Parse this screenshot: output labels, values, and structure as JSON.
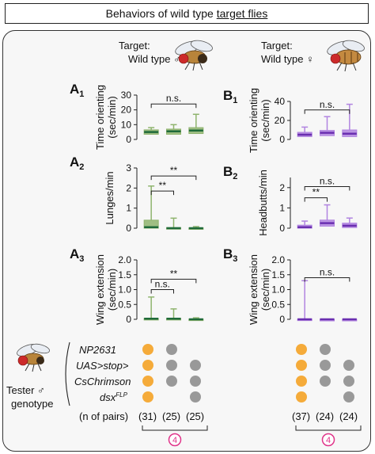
{
  "title": {
    "prefix": "Behaviors of wild type ",
    "underlined": "target flies"
  },
  "columns": [
    {
      "target_label": "Target:",
      "target_sex_label": "Wild type ♂"
    },
    {
      "target_label": "Target:",
      "target_sex_label": "Wild type ♀"
    }
  ],
  "colors": {
    "green_light": "#8fb46e",
    "green_dark": "#1f6a3a",
    "purple_light": "#b184e0",
    "purple_dark": "#6a2fb0",
    "dot_orange": "#f5ab3a",
    "dot_gray": "#999999",
    "badge": "#e0348a"
  },
  "chart_data": [
    {
      "panel": "A1",
      "panel_letter": "A",
      "panel_sub": "1",
      "type": "box",
      "ylabel_line1": "Time orienting",
      "ylabel_line2": "(sec/min)",
      "ylim": [
        0,
        30
      ],
      "yticks": [
        "0",
        "10",
        "20",
        "30"
      ],
      "color_light": "#8fb46e",
      "color_dark": "#1f6a3a",
      "boxes": [
        {
          "min": 1,
          "q1": 3.5,
          "median": 5,
          "q3": 6.5,
          "max": 8
        },
        {
          "min": 1,
          "q1": 3.5,
          "median": 5.5,
          "q3": 7,
          "max": 10
        },
        {
          "min": 1,
          "q1": 4,
          "median": 6,
          "q3": 8,
          "max": 17
        }
      ],
      "annotations": [
        {
          "text": "n.s.",
          "from": 0,
          "to": 2,
          "level": 24
        }
      ]
    },
    {
      "panel": "A2",
      "panel_letter": "A",
      "panel_sub": "2",
      "type": "box",
      "ylabel_line1": "Lunges/min",
      "ylabel_line2": "",
      "ylim": [
        0,
        3
      ],
      "yticks": [
        "0",
        "1",
        "2",
        "3"
      ],
      "color_light": "#8fb46e",
      "color_dark": "#1f6a3a",
      "boxes": [
        {
          "min": 0,
          "q1": 0,
          "median": 0.05,
          "q3": 0.4,
          "max": 2.1
        },
        {
          "min": 0,
          "q1": 0,
          "median": 0,
          "q3": 0.03,
          "max": 0.5
        },
        {
          "min": 0,
          "q1": 0,
          "median": 0,
          "q3": 0.02,
          "max": 0.08
        }
      ],
      "annotations": [
        {
          "text": "**",
          "from": 0,
          "to": 1,
          "level": 1.85
        },
        {
          "text": "**",
          "from": 0,
          "to": 2,
          "level": 2.6
        }
      ]
    },
    {
      "panel": "A3",
      "panel_letter": "A",
      "panel_sub": "3",
      "type": "box",
      "ylabel_line1": "Wing extension",
      "ylabel_line2": "(sec/min)",
      "ylim": [
        0,
        2
      ],
      "yticks": [
        "0",
        "0.5",
        "1.0",
        "1.5",
        "2.0"
      ],
      "color_light": "#8fb46e",
      "color_dark": "#1f6a3a",
      "boxes": [
        {
          "min": 0,
          "q1": 0,
          "median": 0.02,
          "q3": 0.03,
          "max": 0.75
        },
        {
          "min": 0,
          "q1": 0,
          "median": 0.02,
          "q3": 0.03,
          "max": 0.35
        },
        {
          "min": 0,
          "q1": 0,
          "median": 0,
          "q3": 0.01,
          "max": 0.05
        }
      ],
      "annotations": [
        {
          "text": "n.s.",
          "from": 0,
          "to": 1,
          "level": 1.0
        },
        {
          "text": "**",
          "from": 0,
          "to": 2,
          "level": 1.35
        }
      ]
    },
    {
      "panel": "B1",
      "panel_letter": "B",
      "panel_sub": "1",
      "type": "box",
      "ylabel_line1": "Time orienting",
      "ylabel_line2": "(sec/min)",
      "ylim": [
        0,
        40
      ],
      "yticks": [
        "0",
        "20",
        "40"
      ],
      "color_light": "#b184e0",
      "color_dark": "#6a2fb0",
      "boxes": [
        {
          "min": 0.5,
          "q1": 3,
          "median": 5,
          "q3": 7.5,
          "max": 13
        },
        {
          "min": 0.5,
          "q1": 4,
          "median": 7,
          "q3": 9.5,
          "max": 24
        },
        {
          "min": 0.5,
          "q1": 3,
          "median": 6,
          "q3": 10,
          "max": 37
        }
      ],
      "annotations": [
        {
          "text": "n.s.",
          "from": 0,
          "to": 2,
          "level": 31
        }
      ]
    },
    {
      "panel": "B2",
      "panel_letter": "B",
      "panel_sub": "2",
      "type": "box",
      "ylabel_line1": "Headbutts/min",
      "ylabel_line2": "",
      "ylim": [
        0,
        2.5
      ],
      "yticks": [
        "0",
        "1",
        "2"
      ],
      "color_light": "#b184e0",
      "color_dark": "#6a2fb0",
      "boxes": [
        {
          "min": 0,
          "q1": 0,
          "median": 0.05,
          "q3": 0.15,
          "max": 0.35
        },
        {
          "min": 0,
          "q1": 0.1,
          "median": 0.25,
          "q3": 0.4,
          "max": 1.15
        },
        {
          "min": 0,
          "q1": 0.03,
          "median": 0.12,
          "q3": 0.25,
          "max": 0.5
        }
      ],
      "annotations": [
        {
          "text": "**",
          "from": 0,
          "to": 1,
          "level": 1.5
        },
        {
          "text": "n.s.",
          "from": 0,
          "to": 2,
          "level": 2.05
        }
      ]
    },
    {
      "panel": "B3",
      "panel_letter": "B",
      "panel_sub": "3",
      "type": "box",
      "ylabel_line1": "Wing extension",
      "ylabel_line2": "(sec/min)",
      "ylim": [
        0,
        2
      ],
      "yticks": [
        "0",
        "0.5",
        "1.0",
        "1.5",
        "2.0"
      ],
      "color_light": "#b184e0",
      "color_dark": "#6a2fb0",
      "boxes": [
        {
          "min": 0,
          "q1": 0,
          "median": 0,
          "q3": 0.01,
          "max": 1.3
        },
        {
          "min": 0,
          "q1": 0,
          "median": 0,
          "q3": 0,
          "max": 0
        },
        {
          "min": 0,
          "q1": 0,
          "median": 0,
          "q3": 0,
          "max": 0
        }
      ],
      "annotations": [
        {
          "text": "n.s.",
          "from": 0,
          "to": 2,
          "level": 1.4
        }
      ]
    }
  ],
  "genotype_table": {
    "tester_label_line1": "Tester ♂",
    "tester_label_line2": "genotype",
    "rows": [
      {
        "label": "NP2631",
        "dots": [
          "orange",
          "gray",
          "none"
        ]
      },
      {
        "label": "UAS>stop>",
        "dots": [
          "orange",
          "gray",
          "gray"
        ]
      },
      {
        "label": "CsChrimson",
        "dots": [
          "orange",
          "gray",
          "gray"
        ]
      },
      {
        "label": "dsx",
        "label_sup": "FLP",
        "dots": [
          "orange",
          "none",
          "gray"
        ]
      }
    ],
    "pairs_label": "(n of pairs)",
    "pairs_a": [
      "(31)",
      "(25)",
      "(25)"
    ],
    "pairs_b": [
      "(37)",
      "(24)",
      "(24)"
    ],
    "badge": "4"
  }
}
